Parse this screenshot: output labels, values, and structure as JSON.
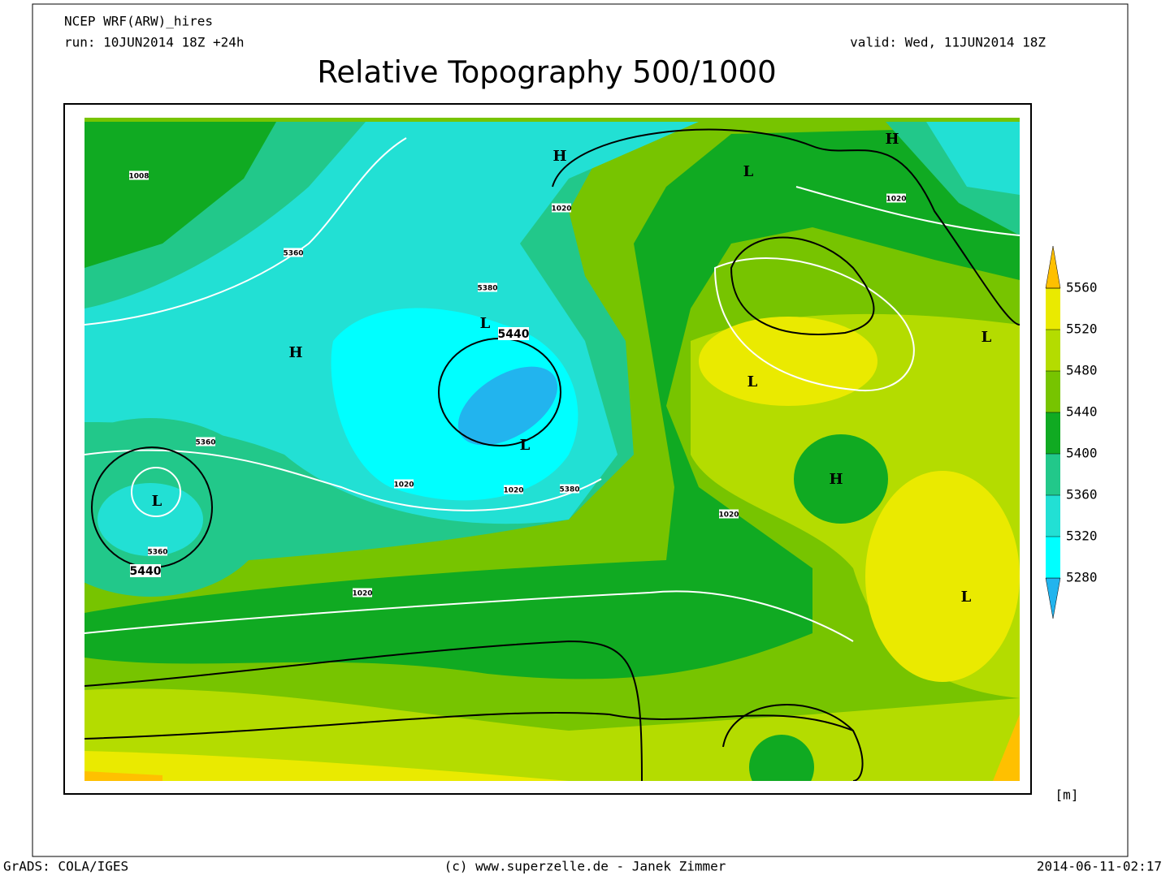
{
  "header": {
    "model": "NCEP WRF(ARW)_hires",
    "run": "run: 10JUN2014 18Z +24h",
    "valid": "valid: Wed, 11JUN2014 18Z",
    "title": "Relative Topography 500/1000"
  },
  "map_labels": [
    "H",
    "L",
    "H",
    "1020",
    "1020",
    "1008",
    "5360",
    "5380",
    "L",
    "5440",
    "H",
    "L",
    "L",
    "L",
    "5360",
    "L",
    "5440",
    "5360",
    "1020",
    "1020",
    "5380",
    "H",
    "1020",
    "1020",
    "L"
  ],
  "colorbar": {
    "levels": [
      5280,
      5320,
      5360,
      5400,
      5440,
      5480,
      5520,
      5560
    ],
    "colors": [
      "#22b4ee",
      "#00ffff",
      "#22e0d4",
      "#22c88a",
      "#10aa22",
      "#77c400",
      "#b4dc00",
      "#eaea00",
      "#ffc000"
    ],
    "unit": "[m]"
  },
  "footer": {
    "left": "GrADS: COLA/IGES",
    "center": "(c) www.superzelle.de - Janek Zimmer",
    "right": "2014-06-11-02:17"
  }
}
